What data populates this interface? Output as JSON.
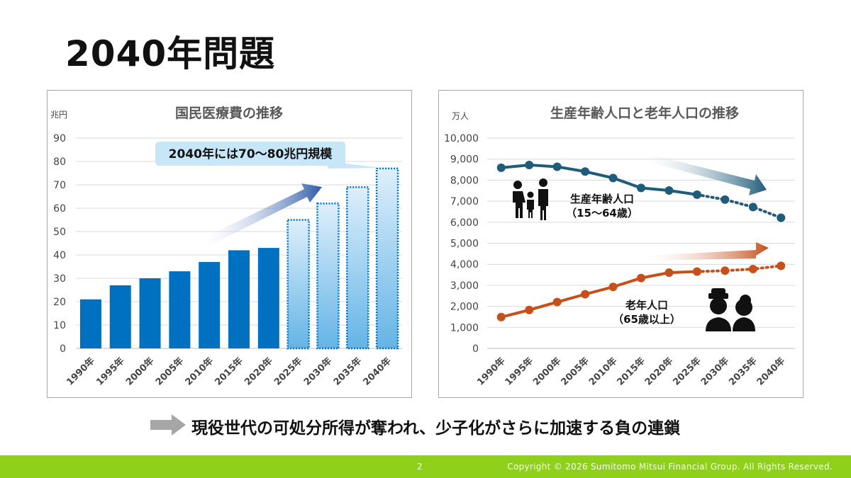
{
  "page": {
    "title": "2040年問題",
    "conclusion": "現役世代の可処分所得が奪われ、少子化がさらに加速する負の連鎖",
    "page_number": "2",
    "copyright": "Copyright © 2026 Sumitomo Mitsui Financial Group. All Rights Reserved.",
    "icons": [
      "family-icon",
      "elderly-couple-icon",
      "right-arrow-icon"
    ]
  },
  "chart_data": [
    {
      "type": "bar",
      "title": "国民医療費の推移",
      "ylabel": "兆円",
      "ylim": [
        0,
        90
      ],
      "yticks": [
        "0",
        "10",
        "20",
        "30",
        "40",
        "50",
        "60",
        "70",
        "80",
        "90"
      ],
      "grid": true,
      "categories": [
        "1990年",
        "1995年",
        "2000年",
        "2005年",
        "2010年",
        "2015年",
        "2020年",
        "2025年",
        "2030年",
        "2035年",
        "2040年"
      ],
      "values": [
        21,
        27,
        30,
        33,
        37,
        42,
        43,
        55,
        62,
        69,
        77
      ],
      "projected_from_index": 7,
      "annotation": "2040年には70～80兆円規模",
      "colors": {
        "actual": "#0070c0",
        "projected_border": "#0070c0",
        "projected_fill_top": "#deeffb",
        "projected_fill_bottom": "#64b4e6",
        "callout": "#c7e6f7",
        "trend_arrow": "#2e5aa8"
      }
    },
    {
      "type": "line",
      "title": "生産年齢人口と老年人口の推移",
      "ylabel": "万人",
      "ylim": [
        0,
        10000
      ],
      "yticks": [
        "0",
        "1,000",
        "2,000",
        "3,000",
        "4,000",
        "5,000",
        "6,000",
        "7,000",
        "8,000",
        "9,000",
        "10,000"
      ],
      "grid": true,
      "categories": [
        "1990年",
        "1995年",
        "2000年",
        "2005年",
        "2010年",
        "2015年",
        "2020年",
        "2025年",
        "2030年",
        "2035年",
        "2040年"
      ],
      "projected_from_index": 7,
      "series": [
        {
          "name": "生産年齢人口",
          "sub": "（15～64歳）",
          "color": "#1f5c7a",
          "values": [
            8590,
            8720,
            8638,
            8409,
            8103,
            7629,
            7509,
            7310,
            7076,
            6722,
            6213
          ]
        },
        {
          "name": "老年人口",
          "sub": "（65歳以上）",
          "color": "#c5501b",
          "values": [
            1489,
            1826,
            2204,
            2576,
            2925,
            3347,
            3603,
            3653,
            3696,
            3773,
            3928
          ]
        }
      ]
    }
  ]
}
